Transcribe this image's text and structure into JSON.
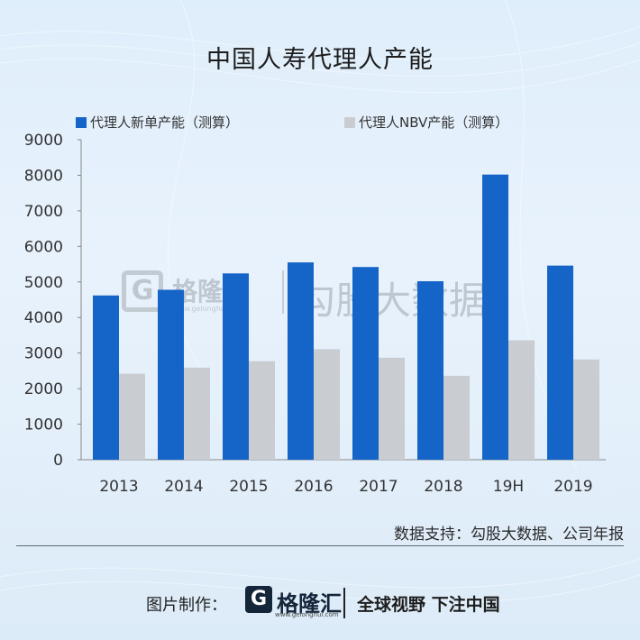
{
  "title": "中国人寿代理人产能",
  "chart_data": {
    "type": "bar",
    "categories": [
      "2013",
      "2014",
      "2015",
      "2016",
      "2017",
      "2018",
      "19H",
      "2019"
    ],
    "series": [
      {
        "name": "代理人新单产能（测算）",
        "color": "#1565c8",
        "values": [
          4620,
          4780,
          5240,
          5550,
          5420,
          5020,
          8020,
          5460
        ]
      },
      {
        "name": "代理人NBV产能（测算）",
        "color": "#c9cdd2",
        "values": [
          2420,
          2590,
          2770,
          3110,
          2870,
          2360,
          3360,
          2820
        ]
      }
    ],
    "ylim": [
      0,
      9000
    ],
    "yticks": [
      0,
      1000,
      2000,
      3000,
      4000,
      5000,
      6000,
      7000,
      8000,
      9000
    ],
    "grid": false,
    "legend": "top-left"
  },
  "source_text": "数据支持：勾股大数据、公司年报",
  "footer": {
    "credit_label": "图片制作：",
    "logo_glyph": "G",
    "logo_name": "格隆汇",
    "logo_url": "www.gelonghui.com",
    "tagline": "全球视野 下注中国"
  },
  "watermark": {
    "glyph": "G",
    "brand": "格隆汇",
    "url": "www.gelonghui.com",
    "text": "勾股大数据"
  }
}
